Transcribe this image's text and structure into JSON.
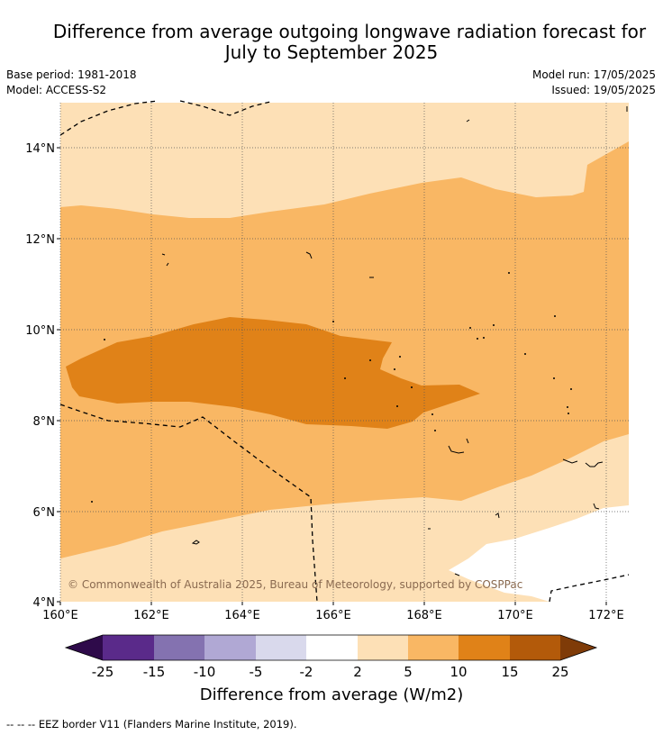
{
  "title_line1": "Difference from average outgoing longwave radiation forecast for",
  "title_line2": "July to September 2025",
  "base_period": "Base period: 1981-2018",
  "model": "Model: ACCESS-S2",
  "model_run": "Model run: 17/05/2025",
  "issued": "Issued: 19/05/2025",
  "copyright": "© Commonwealth of Australia 2025, Bureau of Meteorology, supported by COSPPac",
  "lat_labels": [
    "4°N",
    "6°N",
    "8°N",
    "10°N",
    "12°N",
    "14°N"
  ],
  "lon_labels": [
    "160°E",
    "162°E",
    "164°E",
    "166°E",
    "168°E",
    "170°E",
    "172°E"
  ],
  "legend": {
    "title": "Difference from average (W/m2)",
    "ticks": [
      "-25",
      "-15",
      "-10",
      "-5",
      "-2",
      "2",
      "5",
      "10",
      "15",
      "25"
    ],
    "colors": [
      "#2e0a4a",
      "#5a2a8a",
      "#8472b0",
      "#b0a8d4",
      "#d9d9ec",
      "#ffffff",
      "#fde0b6",
      "#f9b764",
      "#e08218",
      "#b35a0a",
      "#7f3b08"
    ]
  },
  "footnote": "--  --  -- EEZ border V11 (Flanders Marine Institute, 2019)."
}
